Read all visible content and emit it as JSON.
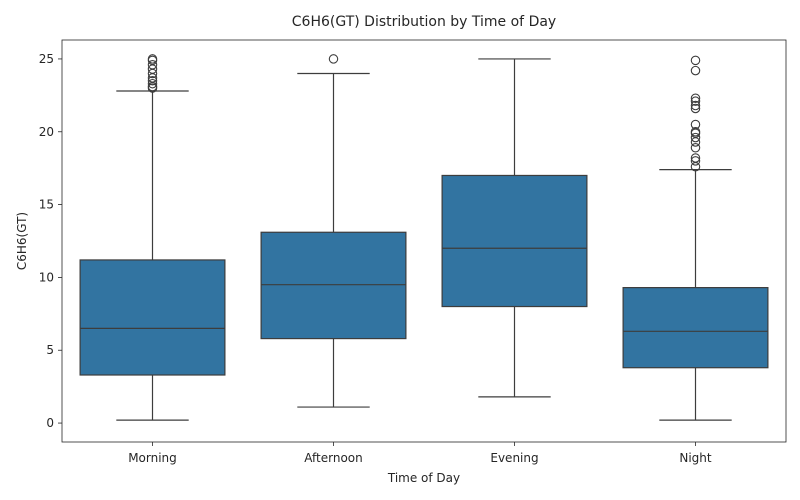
{
  "chart_data": {
    "type": "box",
    "title": "C6H6(GT) Distribution by Time of Day",
    "xlabel": "Time of Day",
    "ylabel": "C6H6(GT)",
    "ylim": [
      -1.3,
      26.3
    ],
    "yticks": [
      0,
      5,
      10,
      15,
      20,
      25
    ],
    "box_color": "#3274a1",
    "line_color": "#3d3d3d",
    "categories": [
      "Morning",
      "Afternoon",
      "Evening",
      "Night"
    ],
    "boxes": [
      {
        "category": "Morning",
        "whisker_low": 0.2,
        "q1": 3.3,
        "median": 6.5,
        "q3": 11.2,
        "whisker_high": 22.8,
        "outliers": [
          23.0,
          23.1,
          23.3,
          23.5,
          23.7,
          24.0,
          24.3,
          24.6,
          24.9,
          25.0
        ]
      },
      {
        "category": "Afternoon",
        "whisker_low": 1.1,
        "q1": 5.8,
        "median": 9.5,
        "q3": 13.1,
        "whisker_high": 24.0,
        "outliers": [
          25.0
        ]
      },
      {
        "category": "Evening",
        "whisker_low": 1.8,
        "q1": 8.0,
        "median": 12.0,
        "q3": 17.0,
        "whisker_high": 25.0,
        "outliers": []
      },
      {
        "category": "Night",
        "whisker_low": 0.2,
        "q1": 3.8,
        "median": 6.3,
        "q3": 9.3,
        "whisker_high": 17.4,
        "outliers": [
          17.6,
          18.0,
          18.2,
          18.9,
          19.3,
          19.6,
          19.9,
          20.0,
          20.5,
          21.6,
          21.8,
          22.1,
          22.3,
          24.2,
          24.9
        ]
      }
    ]
  }
}
